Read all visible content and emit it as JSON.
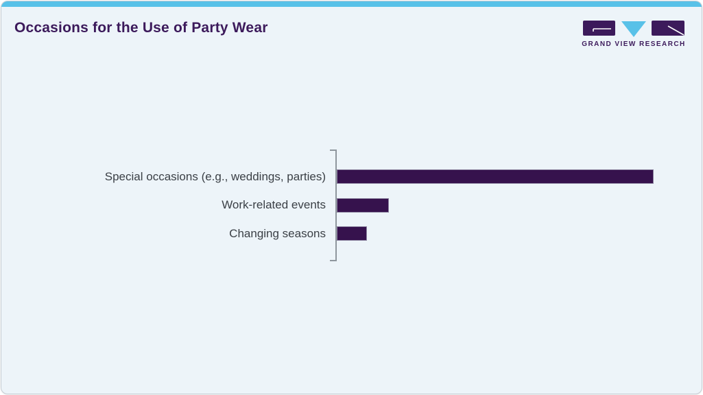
{
  "page": {
    "card_background": "#edf4f9",
    "card_border_color": "#c5ccd3",
    "accent_color": "#58c1e8",
    "brand_purple": "#3c1a5b"
  },
  "header": {
    "title": "Occasions for the Use of Party Wear",
    "logo": {
      "brand_name": "GRAND VIEW RESEARCH",
      "glyphs": [
        "g-block",
        "down-triangle",
        "r-block"
      ]
    }
  },
  "chart_data": {
    "type": "bar",
    "orientation": "horizontal",
    "title": "Occasions for the Use of Party Wear",
    "categories": [
      "Special occasions (e.g., weddings, parties)",
      "Work-related events",
      "Changing seasons"
    ],
    "values": [
      100,
      16.5,
      9.5
    ],
    "value_units": "relative length, % of longest bar (no numeric axis shown)",
    "xlabel": "",
    "ylabel": "",
    "xlim": [
      0,
      110
    ],
    "grid": false,
    "legend": false,
    "bar_color": "#36124d",
    "bar_edge_color": "#8d84a0",
    "axis_color": "#8e969d",
    "label_color": "#3a3f45"
  }
}
